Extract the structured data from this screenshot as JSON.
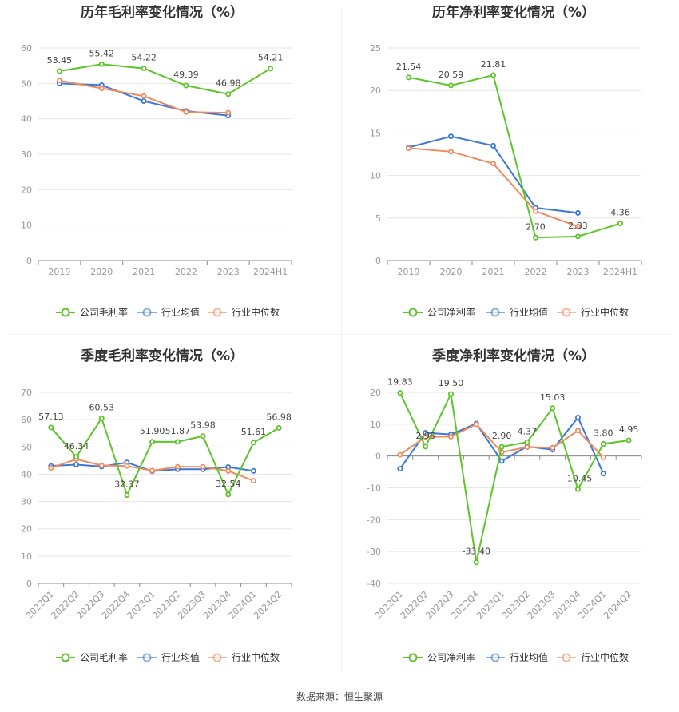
{
  "colors": {
    "company": "#5cc529",
    "avg": "#3b78d8",
    "median": "#f08a5d",
    "grid": "#e6e6e6",
    "axis": "#999999"
  },
  "legend": {
    "avg": "行业均值",
    "median": "行业中位数"
  },
  "source": "数据来源：恒生聚源",
  "chart_data": [
    {
      "type": "line",
      "title": "历年毛利率变化情况（%）",
      "categories": [
        "2019",
        "2020",
        "2021",
        "2022",
        "2023",
        "2024H1"
      ],
      "ylim": [
        0,
        60
      ],
      "yticks": [
        0,
        10,
        20,
        30,
        40,
        50,
        60
      ],
      "grid": true,
      "legend_position": "bottom",
      "series": [
        {
          "name": "公司毛利率",
          "key": "company",
          "values": [
            53.45,
            55.42,
            54.22,
            49.39,
            46.98,
            54.21
          ],
          "labels": [
            "53.45",
            "55.42",
            "54.22",
            "49.39",
            "46.98",
            "54.21"
          ]
        },
        {
          "name": "行业均值",
          "key": "avg",
          "values": [
            50.0,
            49.5,
            45.0,
            42.2,
            40.9,
            null
          ]
        },
        {
          "name": "行业中位数",
          "key": "median",
          "values": [
            50.8,
            48.6,
            46.4,
            41.9,
            41.7,
            null
          ]
        }
      ]
    },
    {
      "type": "line",
      "title": "历年净利率变化情况（%）",
      "categories": [
        "2019",
        "2020",
        "2021",
        "2022",
        "2023",
        "2024H1"
      ],
      "ylim": [
        0,
        25
      ],
      "yticks": [
        0,
        5,
        10,
        15,
        20,
        25
      ],
      "grid": true,
      "legend_position": "bottom",
      "series": [
        {
          "name": "公司净利率",
          "key": "company",
          "values": [
            21.54,
            20.59,
            21.81,
            2.7,
            2.83,
            4.36
          ],
          "labels": [
            "21.54",
            "20.59",
            "21.81",
            "2.70",
            "2.83",
            "4.36"
          ]
        },
        {
          "name": "行业均值",
          "key": "avg",
          "values": [
            13.3,
            14.6,
            13.5,
            6.2,
            5.6,
            null
          ]
        },
        {
          "name": "行业中位数",
          "key": "median",
          "values": [
            13.2,
            12.8,
            11.4,
            5.8,
            4.0,
            null
          ]
        }
      ]
    },
    {
      "type": "line",
      "title": "季度毛利率变化情况（%）",
      "categories": [
        "2022Q1",
        "2022Q2",
        "2022Q3",
        "2022Q4",
        "2023Q1",
        "2023Q2",
        "2023Q3",
        "2023Q4",
        "2024Q1",
        "2024Q2"
      ],
      "ylim": [
        0,
        70
      ],
      "yticks": [
        0,
        10,
        20,
        30,
        40,
        50,
        60,
        70
      ],
      "grid": true,
      "legend_position": "bottom",
      "series": [
        {
          "name": "公司毛利率",
          "key": "company",
          "values": [
            57.13,
            46.34,
            60.53,
            32.37,
            51.9,
            51.87,
            53.98,
            32.54,
            51.61,
            56.98
          ],
          "labels": [
            "57.13",
            "46.34",
            "60.53",
            "32.37",
            "51.90",
            "51.87",
            "53.98",
            "32.54",
            "51.61",
            "56.98"
          ]
        },
        {
          "name": "行业均值",
          "key": "avg",
          "values": [
            43.0,
            43.5,
            42.8,
            44.3,
            41.1,
            41.8,
            41.8,
            42.6,
            41.2,
            null
          ]
        },
        {
          "name": "行业中位数",
          "key": "median",
          "values": [
            42.3,
            45.5,
            43.2,
            43.0,
            41.3,
            42.7,
            42.7,
            41.2,
            37.6,
            null
          ]
        }
      ]
    },
    {
      "type": "line",
      "title": "季度净利率变化情况（%）",
      "categories": [
        "2022Q1",
        "2022Q2",
        "2022Q3",
        "2022Q4",
        "2023Q1",
        "2023Q2",
        "2023Q3",
        "2023Q4",
        "2024Q1",
        "2024Q2"
      ],
      "ylim": [
        -40,
        20
      ],
      "yticks": [
        -40,
        -30,
        -20,
        -10,
        0,
        10,
        20
      ],
      "grid": true,
      "legend_position": "bottom",
      "series": [
        {
          "name": "公司净利率",
          "key": "company",
          "values": [
            19.83,
            2.96,
            19.5,
            -33.4,
            2.9,
            4.37,
            15.03,
            -10.45,
            3.8,
            4.95
          ],
          "labels": [
            "19.83",
            "2.96",
            "19.50",
            "-33.40",
            "2.90",
            "4.37",
            "15.03",
            "-10.45",
            "3.80",
            "4.95"
          ]
        },
        {
          "name": "行业均值",
          "key": "avg",
          "values": [
            -4.0,
            7.3,
            6.8,
            10.2,
            -1.6,
            3.0,
            2.0,
            12.1,
            -5.5,
            null
          ]
        },
        {
          "name": "行业中位数",
          "key": "median",
          "values": [
            0.4,
            6.0,
            6.1,
            10.0,
            1.2,
            2.8,
            2.6,
            8.0,
            -0.4,
            null
          ]
        }
      ]
    }
  ]
}
